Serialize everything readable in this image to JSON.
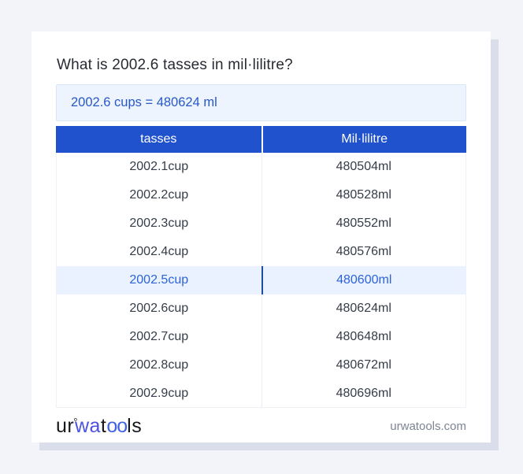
{
  "card": {
    "title": "What is 2002.6 tasses in mil·lilitre?",
    "result": "2002.6 cups = 480624 ml"
  },
  "table": {
    "headers": [
      "tasses",
      "Mil·lilitre"
    ],
    "rows": [
      {
        "tasses": "2002.1cup",
        "ml": "480504ml",
        "highlighted": false
      },
      {
        "tasses": "2002.2cup",
        "ml": "480528ml",
        "highlighted": false
      },
      {
        "tasses": "2002.3cup",
        "ml": "480552ml",
        "highlighted": false
      },
      {
        "tasses": "2002.4cup",
        "ml": "480576ml",
        "highlighted": false
      },
      {
        "tasses": "2002.5cup",
        "ml": "480600ml",
        "highlighted": true
      },
      {
        "tasses": "2002.6cup",
        "ml": "480624ml",
        "highlighted": false
      },
      {
        "tasses": "2002.7cup",
        "ml": "480648ml",
        "highlighted": false
      },
      {
        "tasses": "2002.8cup",
        "ml": "480672ml",
        "highlighted": false
      },
      {
        "tasses": "2002.9cup",
        "ml": "480696ml",
        "highlighted": false
      }
    ]
  },
  "footer": {
    "logo": {
      "seg1": "ur",
      "ring": "°",
      "seg2": "wa",
      "seg3": "t",
      "seg4": "oo",
      "seg5": "ls"
    },
    "site": "urwatools.com"
  },
  "colors": {
    "page_background": "#f2f4f9",
    "card_background": "#ffffff",
    "card_shadow": "#d9deea",
    "table_header_bg": "#2152cd",
    "result_box_bg": "#edf4fd",
    "result_box_border": "#d9e6f8",
    "accent_blue_text": "#2857c8",
    "highlight_row_bg": "#e9f2fe",
    "highlight_row_text": "#2e63dc",
    "highlight_divider": "#1d4da9",
    "logo_blue_wa": "#4b52e0",
    "logo_blue_oo": "#3f62e6",
    "footer_text": "#7d8493"
  }
}
